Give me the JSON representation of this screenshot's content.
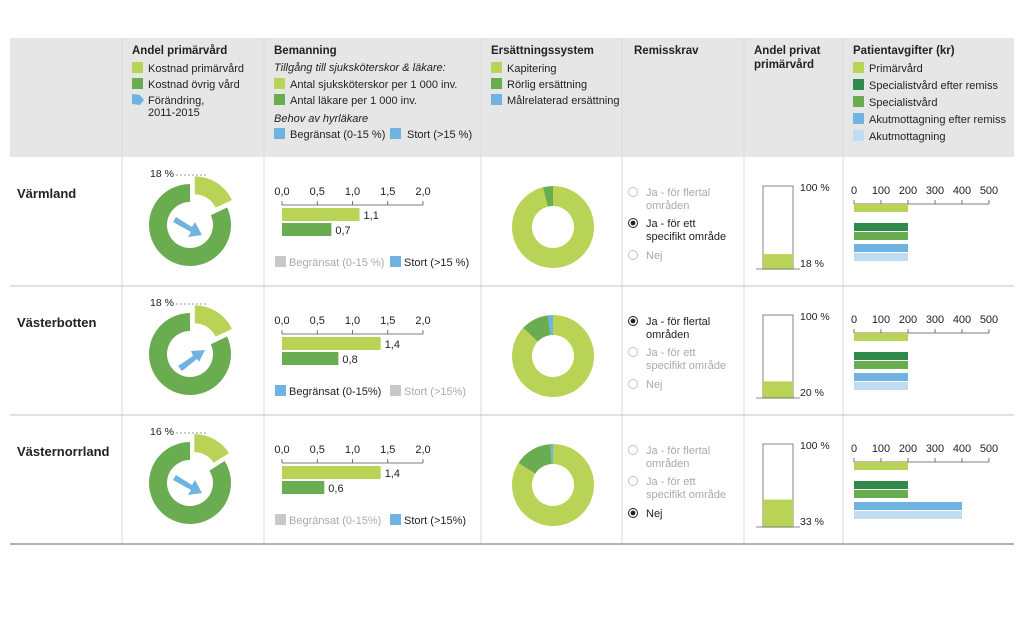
{
  "colors": {
    "header_bg": "#e6e6e6",
    "light_green": "#b8d355",
    "mid_green": "#6aad50",
    "dark_green": "#2f8a4c",
    "blue": "#6fb3e0",
    "light_blue": "#bfdcf3",
    "gray": "#c8c8c8",
    "disabled_text": "#aaaaaa",
    "grid_line": "#c9c9c9"
  },
  "headers": {
    "col1": {
      "title": "Andel primärvård",
      "legend": [
        {
          "label": "Kostnad primärvård",
          "color": "light_green",
          "shape": "square"
        },
        {
          "label": "Kostnad övrig vård",
          "color": "mid_green",
          "shape": "square"
        },
        {
          "label": "Förändring,",
          "color": "blue",
          "shape": "arrow"
        }
      ],
      "legend_extra": "2011-2015"
    },
    "col2": {
      "title": "Bemanning",
      "subtitle": "Tillgång till sjuksköterskor & läkare:",
      "legend": [
        {
          "label": "Antal sjuksköterskor per 1 000 inv.",
          "color": "light_green"
        },
        {
          "label": "Antal läkare per 1 000 inv.",
          "color": "mid_green"
        }
      ],
      "subtitle2": "Behov av hyrläkare",
      "need_legend": [
        {
          "label": "Begränsat (0-15 %)",
          "color": "blue"
        },
        {
          "label": "Stort (>15 %)",
          "color": "blue"
        }
      ]
    },
    "col3": {
      "title": "Ersättningssystem",
      "legend": [
        {
          "label": "Kapitering",
          "color": "light_green"
        },
        {
          "label": "Rörlig ersättning",
          "color": "mid_green"
        },
        {
          "label": "Målrelaterad ersättning",
          "color": "blue"
        }
      ]
    },
    "col4": {
      "title": "Remisskrav"
    },
    "col5": {
      "title_line1": "Andel privat",
      "title_line2": "primärvård"
    },
    "col6": {
      "title": "Patientavgifter (kr)",
      "legend": [
        {
          "label": "Primärvård",
          "color": "light_green"
        },
        {
          "label": "Specialistvård efter remiss",
          "color": "dark_green"
        },
        {
          "label": "Specialistvård",
          "color": "mid_green"
        },
        {
          "label": "Akutmottagning efter remiss",
          "color": "blue"
        },
        {
          "label": "Akutmottagning",
          "color": "light_blue"
        }
      ]
    }
  },
  "chart_data": [
    {
      "type": "pie",
      "title": "Andel primärvård",
      "region": "Värmland",
      "series": [
        {
          "name": "Kostnad primärvård",
          "value": 18,
          "label": "18 %"
        },
        {
          "name": "Kostnad övrig vård",
          "value": 82
        }
      ],
      "change_direction": "decrease"
    },
    {
      "type": "pie",
      "title": "Andel primärvård",
      "region": "Västerbotten",
      "series": [
        {
          "name": "Kostnad primärvård",
          "value": 18,
          "label": "18 %"
        },
        {
          "name": "Kostnad övrig vård",
          "value": 82
        }
      ],
      "change_direction": "increase"
    },
    {
      "type": "pie",
      "title": "Andel primärvård",
      "region": "Västernorrland",
      "series": [
        {
          "name": "Kostnad primärvård",
          "value": 16,
          "label": "16 %"
        },
        {
          "name": "Kostnad övrig vård",
          "value": 84
        }
      ],
      "change_direction": "decrease"
    },
    {
      "type": "bar",
      "title": "Bemanning",
      "region": "Värmland",
      "categories": [
        "Antal sjuksköterskor per 1 000 inv.",
        "Antal läkare per 1 000 inv."
      ],
      "values": [
        1.1,
        0.7
      ],
      "labels": [
        "1,1",
        "0,7"
      ],
      "xlim": [
        0,
        2.0
      ],
      "ticks": [
        "0,0",
        "0,5",
        "1,0",
        "1,5",
        "2,0"
      ]
    },
    {
      "type": "bar",
      "title": "Bemanning",
      "region": "Västerbotten",
      "categories": [
        "Antal sjuksköterskor per 1 000 inv.",
        "Antal läkare per 1 000 inv."
      ],
      "values": [
        1.4,
        0.8
      ],
      "labels": [
        "1,4",
        "0,8"
      ],
      "xlim": [
        0,
        2.0
      ],
      "ticks": [
        "0,0",
        "0,5",
        "1,0",
        "1,5",
        "2,0"
      ]
    },
    {
      "type": "bar",
      "title": "Bemanning",
      "region": "Västernorrland",
      "categories": [
        "Antal sjuksköterskor per 1 000 inv.",
        "Antal läkare per 1 000 inv."
      ],
      "values": [
        1.4,
        0.6
      ],
      "labels": [
        "1,4",
        "0,6"
      ],
      "xlim": [
        0,
        2.0
      ],
      "ticks": [
        "0,0",
        "0,5",
        "1,0",
        "1,5",
        "2,0"
      ]
    },
    {
      "type": "pie",
      "title": "Ersättningssystem",
      "region": "Värmland",
      "series": [
        {
          "name": "Kapitering",
          "value": 96
        },
        {
          "name": "Rörlig ersättning",
          "value": 4
        },
        {
          "name": "Målrelaterad ersättning",
          "value": 0
        }
      ]
    },
    {
      "type": "pie",
      "title": "Ersättningssystem",
      "region": "Västerbotten",
      "series": [
        {
          "name": "Kapitering",
          "value": 87
        },
        {
          "name": "Rörlig ersättning",
          "value": 11
        },
        {
          "name": "Målrelaterad ersättning",
          "value": 2
        }
      ]
    },
    {
      "type": "pie",
      "title": "Ersättningssystem",
      "region": "Västernorrland",
      "series": [
        {
          "name": "Kapitering",
          "value": 84
        },
        {
          "name": "Rörlig ersättning",
          "value": 15
        },
        {
          "name": "Målrelaterad ersättning",
          "value": 1
        }
      ]
    },
    {
      "type": "bar",
      "title": "Andel privat primärvård",
      "region": "Värmland",
      "value": 18,
      "max": 100,
      "label": "18 %",
      "max_label": "100 %"
    },
    {
      "type": "bar",
      "title": "Andel privat primärvård",
      "region": "Västerbotten",
      "value": 20,
      "max": 100,
      "label": "20 %",
      "max_label": "100 %"
    },
    {
      "type": "bar",
      "title": "Andel privat primärvård",
      "region": "Västernorrland",
      "value": 33,
      "max": 100,
      "label": "33 %",
      "max_label": "100 %"
    },
    {
      "type": "bar",
      "title": "Patientavgifter (kr)",
      "region": "Värmland",
      "categories": [
        "Primärvård",
        "Specialistvård efter remiss",
        "Specialistvård",
        "Akutmottagning efter remiss",
        "Akutmottagning"
      ],
      "values": [
        200,
        200,
        200,
        200,
        200
      ],
      "xlim": [
        0,
        500
      ],
      "ticks": [
        "0",
        "100",
        "200",
        "300",
        "400",
        "500"
      ]
    },
    {
      "type": "bar",
      "title": "Patientavgifter (kr)",
      "region": "Västerbotten",
      "categories": [
        "Primärvård",
        "Specialistvård efter remiss",
        "Specialistvård",
        "Akutmottagning efter remiss",
        "Akutmottagning"
      ],
      "values": [
        200,
        200,
        200,
        200,
        200
      ],
      "xlim": [
        0,
        500
      ],
      "ticks": [
        "0",
        "100",
        "200",
        "300",
        "400",
        "500"
      ]
    },
    {
      "type": "bar",
      "title": "Patientavgifter (kr)",
      "region": "Västernorrland",
      "categories": [
        "Primärvård",
        "Specialistvård efter remiss",
        "Specialistvård",
        "Akutmottagning efter remiss",
        "Akutmottagning"
      ],
      "values": [
        200,
        200,
        200,
        400,
        400
      ],
      "xlim": [
        0,
        500
      ],
      "ticks": [
        "0",
        "100",
        "200",
        "300",
        "400",
        "500"
      ]
    }
  ],
  "rows": [
    {
      "region": "Värmland",
      "pie_index": 0,
      "staff_index": 3,
      "comp_index": 6,
      "private_index": 9,
      "fees_index": 12,
      "need": [
        {
          "label": "Begränsat (0-15 %)",
          "active": false
        },
        {
          "label": "Stort (>15 %)",
          "active": true
        }
      ],
      "remiss": [
        {
          "label": "Ja - för flertal",
          "label2": "områden",
          "selected": false,
          "disabled": true
        },
        {
          "label": "Ja - för ett",
          "label2": "specifikt område",
          "selected": true,
          "disabled": false
        },
        {
          "label": "Nej",
          "label2": "",
          "selected": false,
          "disabled": true
        }
      ]
    },
    {
      "region": "Västerbotten",
      "pie_index": 1,
      "staff_index": 4,
      "comp_index": 7,
      "private_index": 10,
      "fees_index": 13,
      "need": [
        {
          "label": "Begränsat (0-15%)",
          "active": true
        },
        {
          "label": "Stort (>15%)",
          "active": false
        }
      ],
      "remiss": [
        {
          "label": "Ja - för flertal",
          "label2": "områden",
          "selected": true,
          "disabled": false
        },
        {
          "label": "Ja - för ett",
          "label2": "specifikt område",
          "selected": false,
          "disabled": true
        },
        {
          "label": "Nej",
          "label2": "",
          "selected": false,
          "disabled": true
        }
      ]
    },
    {
      "region": "Västernorrland",
      "pie_index": 2,
      "staff_index": 5,
      "comp_index": 8,
      "private_index": 11,
      "fees_index": 14,
      "need": [
        {
          "label": "Begränsat (0-15%)",
          "active": false
        },
        {
          "label": "Stort (>15%)",
          "active": true
        }
      ],
      "remiss": [
        {
          "label": "Ja - för flertal",
          "label2": "områden",
          "selected": false,
          "disabled": true
        },
        {
          "label": "Ja - för ett",
          "label2": "specifikt område",
          "selected": false,
          "disabled": true
        },
        {
          "label": "Nej",
          "label2": "",
          "selected": true,
          "disabled": false
        }
      ]
    }
  ]
}
